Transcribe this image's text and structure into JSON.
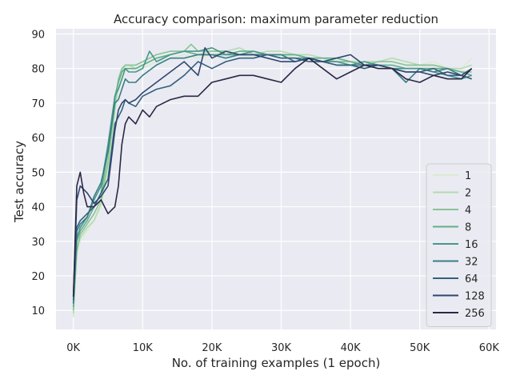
{
  "chart_data": {
    "type": "line",
    "title": "Accuracy comparison: maximum parameter reduction",
    "xlabel": "No. of training examples (1 epoch)",
    "ylabel": "Test accuracy",
    "xlim": [
      -2500,
      61000
    ],
    "ylim": [
      4.5,
      91.5
    ],
    "xticks": [
      0,
      10000,
      20000,
      30000,
      40000,
      50000,
      60000
    ],
    "xtick_labels": [
      "0K",
      "10K",
      "20K",
      "30K",
      "40K",
      "50K",
      "60K"
    ],
    "yticks": [
      10,
      20,
      30,
      40,
      50,
      60,
      70,
      80,
      90
    ],
    "ytick_labels": [
      "10",
      "20",
      "30",
      "40",
      "50",
      "60",
      "70",
      "80",
      "90"
    ],
    "grid": true,
    "legend_position": "lower-right",
    "background": "#eaeaf2",
    "series": [
      {
        "name": "1",
        "color": "#d9ecd2",
        "x": [
          0,
          500,
          1000,
          2000,
          3000,
          4000,
          5000,
          6000,
          6500,
          7000,
          7500,
          8000,
          9000,
          10000,
          12000,
          14000,
          16000,
          18000,
          20000,
          22000,
          24000,
          26000,
          28000,
          30000,
          32000,
          34000,
          36000,
          38000,
          40000,
          42000,
          44000,
          46000,
          48000,
          50000,
          52000,
          54000,
          56000,
          57500
        ],
        "values": [
          8,
          26,
          30,
          33,
          36,
          40,
          50,
          66,
          74,
          78,
          80,
          80,
          80,
          80,
          82,
          83,
          84,
          83,
          84,
          85,
          84,
          83,
          84,
          84,
          83,
          83,
          82,
          82,
          82,
          82,
          82,
          82,
          81,
          81,
          82,
          80,
          80,
          83
        ]
      },
      {
        "name": "2",
        "color": "#b3dcae",
        "x": [
          0,
          500,
          1000,
          2000,
          3000,
          4000,
          5000,
          6000,
          6500,
          7000,
          7500,
          8000,
          9000,
          10000,
          12000,
          14000,
          16000,
          18000,
          20000,
          22000,
          24000,
          26000,
          28000,
          30000,
          32000,
          34000,
          36000,
          38000,
          40000,
          42000,
          44000,
          46000,
          48000,
          50000,
          52000,
          54000,
          56000,
          57500
        ],
        "values": [
          9,
          28,
          31,
          34,
          36,
          41,
          52,
          68,
          76,
          79,
          81,
          81,
          80,
          81,
          83,
          84,
          85,
          84,
          85,
          85,
          86,
          84,
          85,
          85,
          84,
          84,
          83,
          82,
          82,
          82,
          82,
          83,
          82,
          81,
          81,
          80,
          80,
          81
        ]
      },
      {
        "name": "4",
        "color": "#86c494",
        "x": [
          0,
          500,
          1000,
          2000,
          3000,
          4000,
          5000,
          6000,
          6500,
          7000,
          7500,
          8000,
          9000,
          10000,
          12000,
          14000,
          16000,
          17000,
          18000,
          20000,
          22000,
          24000,
          26000,
          28000,
          30000,
          32000,
          34000,
          36000,
          38000,
          40000,
          42000,
          44000,
          46000,
          48000,
          50000,
          52000,
          54000,
          56000,
          57500
        ],
        "values": [
          10,
          27,
          32,
          35,
          38,
          42,
          53,
          70,
          77,
          80,
          81,
          81,
          81,
          82,
          84,
          85,
          85,
          87,
          85,
          85,
          85,
          84,
          85,
          84,
          84,
          84,
          83,
          82,
          82,
          82,
          81,
          82,
          82,
          81,
          81,
          81,
          80,
          79,
          79
        ]
      },
      {
        "name": "8",
        "color": "#63ae8a",
        "x": [
          0,
          500,
          1000,
          2000,
          3000,
          4000,
          5000,
          6000,
          6500,
          7000,
          7500,
          8000,
          9000,
          10000,
          12000,
          14000,
          16000,
          18000,
          20000,
          22000,
          24000,
          26000,
          28000,
          30000,
          32000,
          34000,
          36000,
          38000,
          40000,
          42000,
          44000,
          46000,
          48000,
          50000,
          52000,
          54000,
          56000,
          57500
        ],
        "values": [
          11,
          30,
          33,
          36,
          40,
          44,
          56,
          72,
          76,
          79,
          80,
          80,
          80,
          81,
          83,
          84,
          85,
          84,
          84,
          84,
          85,
          85,
          84,
          84,
          84,
          83,
          83,
          83,
          82,
          81,
          81,
          81,
          80,
          80,
          80,
          80,
          79,
          78
        ]
      },
      {
        "name": "16",
        "color": "#47978a",
        "x": [
          0,
          500,
          1000,
          2000,
          3000,
          4000,
          5000,
          6000,
          6500,
          7000,
          7500,
          8000,
          9000,
          10000,
          11000,
          12000,
          14000,
          16000,
          18000,
          20000,
          22000,
          24000,
          26000,
          28000,
          30000,
          32000,
          34000,
          36000,
          38000,
          40000,
          42000,
          44000,
          46000,
          48000,
          50000,
          52000,
          54000,
          56000,
          57500
        ],
        "values": [
          12,
          31,
          34,
          37,
          42,
          46,
          58,
          72,
          74,
          77,
          80,
          79,
          79,
          80,
          85,
          82,
          84,
          85,
          85,
          86,
          84,
          84,
          85,
          84,
          83,
          83,
          83,
          82,
          82,
          81,
          82,
          81,
          80,
          80,
          80,
          79,
          78,
          77,
          78
        ]
      },
      {
        "name": "32",
        "color": "#3a7e85",
        "x": [
          0,
          500,
          1000,
          2000,
          3000,
          4000,
          5000,
          6000,
          6500,
          7000,
          7500,
          8000,
          9000,
          10000,
          12000,
          14000,
          16000,
          18000,
          20000,
          22000,
          24000,
          26000,
          28000,
          30000,
          32000,
          34000,
          36000,
          38000,
          40000,
          42000,
          44000,
          46000,
          48000,
          50000,
          52000,
          54000,
          56000,
          57500
        ],
        "values": [
          12,
          33,
          35,
          37,
          43,
          47,
          56,
          70,
          71,
          74,
          77,
          76,
          76,
          78,
          81,
          83,
          83,
          84,
          84,
          83,
          84,
          84,
          84,
          84,
          82,
          83,
          82,
          81,
          81,
          81,
          81,
          80,
          76,
          80,
          79,
          80,
          78,
          77
        ]
      },
      {
        "name": "64",
        "color": "#34617e",
        "x": [
          0,
          500,
          1000,
          2000,
          3000,
          4000,
          5000,
          6000,
          6500,
          7000,
          7500,
          8000,
          9000,
          10000,
          12000,
          14000,
          16000,
          18000,
          20000,
          22000,
          24000,
          26000,
          28000,
          30000,
          32000,
          34000,
          36000,
          38000,
          40000,
          42000,
          44000,
          46000,
          48000,
          50000,
          52000,
          54000,
          56000,
          57500
        ],
        "values": [
          13,
          34,
          36,
          38,
          40,
          44,
          48,
          64,
          66,
          68,
          71,
          70,
          69,
          72,
          74,
          75,
          78,
          82,
          80,
          82,
          83,
          83,
          84,
          83,
          83,
          82,
          82,
          81,
          81,
          80,
          81,
          80,
          79,
          79,
          80,
          78,
          78,
          77
        ]
      },
      {
        "name": "128",
        "color": "#2f4670",
        "x": [
          0,
          500,
          1000,
          2000,
          3000,
          4000,
          5000,
          6000,
          6500,
          7000,
          7500,
          8000,
          9000,
          10000,
          12000,
          14000,
          16000,
          18000,
          19000,
          20000,
          22000,
          24000,
          26000,
          28000,
          30000,
          32000,
          34000,
          36000,
          38000,
          40000,
          42000,
          44000,
          46000,
          48000,
          50000,
          52000,
          54000,
          56000,
          57500
        ],
        "values": [
          14,
          42,
          46,
          44,
          41,
          43,
          46,
          62,
          68,
          70,
          71,
          70,
          71,
          73,
          76,
          79,
          82,
          78,
          86,
          83,
          85,
          84,
          84,
          83,
          82,
          82,
          83,
          82,
          83,
          84,
          81,
          81,
          80,
          79,
          79,
          78,
          79,
          78,
          80
        ]
      },
      {
        "name": "256",
        "color": "#2a2846",
        "x": [
          0,
          500,
          1000,
          1500,
          2000,
          3000,
          4000,
          5000,
          6000,
          6500,
          7000,
          7500,
          8000,
          9000,
          10000,
          11000,
          12000,
          14000,
          16000,
          18000,
          20000,
          22000,
          24000,
          26000,
          28000,
          30000,
          32000,
          34000,
          36000,
          38000,
          40000,
          42000,
          44000,
          46000,
          48000,
          50000,
          52000,
          54000,
          56000,
          57500
        ],
        "values": [
          14,
          46,
          50,
          44,
          40,
          40,
          42,
          38,
          40,
          46,
          58,
          64,
          66,
          64,
          68,
          66,
          69,
          71,
          72,
          72,
          76,
          77,
          78,
          78,
          77,
          76,
          80,
          83,
          80,
          77,
          79,
          81,
          80,
          80,
          77,
          76,
          78,
          77,
          77,
          80
        ]
      }
    ]
  }
}
